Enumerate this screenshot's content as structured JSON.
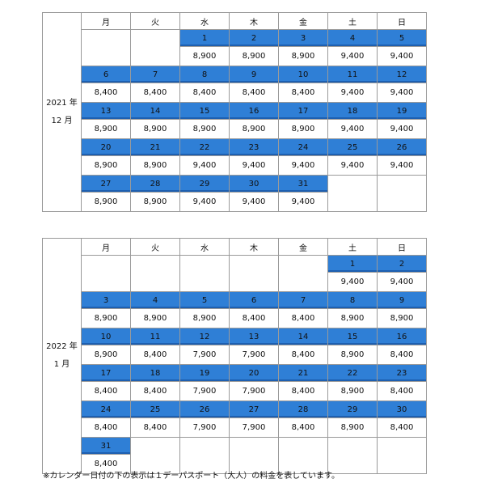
{
  "weekdays": [
    "月",
    "火",
    "水",
    "木",
    "金",
    "土",
    "日"
  ],
  "calendars": [
    {
      "id": "cal1",
      "year_label": "2021 年",
      "month_label": "12 月",
      "weeks": [
        [
          null,
          null,
          {
            "d": "1",
            "p": "8,900"
          },
          {
            "d": "2",
            "p": "8,900"
          },
          {
            "d": "3",
            "p": "8,900"
          },
          {
            "d": "4",
            "p": "9,400"
          },
          {
            "d": "5",
            "p": "9,400"
          }
        ],
        [
          {
            "d": "6",
            "p": "8,400"
          },
          {
            "d": "7",
            "p": "8,400"
          },
          {
            "d": "8",
            "p": "8,400"
          },
          {
            "d": "9",
            "p": "8,400"
          },
          {
            "d": "10",
            "p": "8,400"
          },
          {
            "d": "11",
            "p": "9,400"
          },
          {
            "d": "12",
            "p": "9,400"
          }
        ],
        [
          {
            "d": "13",
            "p": "8,900"
          },
          {
            "d": "14",
            "p": "8,900"
          },
          {
            "d": "15",
            "p": "8,900"
          },
          {
            "d": "16",
            "p": "8,900"
          },
          {
            "d": "17",
            "p": "8,900"
          },
          {
            "d": "18",
            "p": "9,400"
          },
          {
            "d": "19",
            "p": "9,400"
          }
        ],
        [
          {
            "d": "20",
            "p": "8,900"
          },
          {
            "d": "21",
            "p": "8,900"
          },
          {
            "d": "22",
            "p": "9,400"
          },
          {
            "d": "23",
            "p": "9,400"
          },
          {
            "d": "24",
            "p": "9,400"
          },
          {
            "d": "25",
            "p": "9,400"
          },
          {
            "d": "26",
            "p": "9,400"
          }
        ],
        [
          {
            "d": "27",
            "p": "8,900"
          },
          {
            "d": "28",
            "p": "8,900"
          },
          {
            "d": "29",
            "p": "9,400"
          },
          {
            "d": "30",
            "p": "9,400"
          },
          {
            "d": "31",
            "p": "9,400"
          },
          null,
          null
        ]
      ]
    },
    {
      "id": "cal2",
      "year_label": "2022 年",
      "month_label": "1 月",
      "weeks": [
        [
          null,
          null,
          null,
          null,
          null,
          {
            "d": "1",
            "p": "9,400"
          },
          {
            "d": "2",
            "p": "9,400"
          }
        ],
        [
          {
            "d": "3",
            "p": "8,900"
          },
          {
            "d": "4",
            "p": "8,900"
          },
          {
            "d": "5",
            "p": "8,900"
          },
          {
            "d": "6",
            "p": "8,400"
          },
          {
            "d": "7",
            "p": "8,400"
          },
          {
            "d": "8",
            "p": "8,900"
          },
          {
            "d": "9",
            "p": "8,900"
          }
        ],
        [
          {
            "d": "10",
            "p": "8,900"
          },
          {
            "d": "11",
            "p": "8,400"
          },
          {
            "d": "12",
            "p": "7,900"
          },
          {
            "d": "13",
            "p": "7,900"
          },
          {
            "d": "14",
            "p": "8,400"
          },
          {
            "d": "15",
            "p": "8,900"
          },
          {
            "d": "16",
            "p": "8,400"
          }
        ],
        [
          {
            "d": "17",
            "p": "8,400"
          },
          {
            "d": "18",
            "p": "8,400"
          },
          {
            "d": "19",
            "p": "7,900"
          },
          {
            "d": "20",
            "p": "7,900"
          },
          {
            "d": "21",
            "p": "8,400"
          },
          {
            "d": "22",
            "p": "8,900"
          },
          {
            "d": "23",
            "p": "8,400"
          }
        ],
        [
          {
            "d": "24",
            "p": "8,400"
          },
          {
            "d": "25",
            "p": "8,400"
          },
          {
            "d": "26",
            "p": "7,900"
          },
          {
            "d": "27",
            "p": "7,900"
          },
          {
            "d": "28",
            "p": "8,400"
          },
          {
            "d": "29",
            "p": "8,900"
          },
          {
            "d": "30",
            "p": "8,400"
          }
        ],
        [
          {
            "d": "31",
            "p": "8,400"
          },
          null,
          null,
          null,
          null,
          null,
          null
        ]
      ]
    }
  ],
  "footnote": "※カレンダー日付の下の表示は１デーパスポート（大人）の料金を表しています。",
  "colors": {
    "date_bar": "#2f7fd6",
    "border": "#9a9a9a"
  }
}
